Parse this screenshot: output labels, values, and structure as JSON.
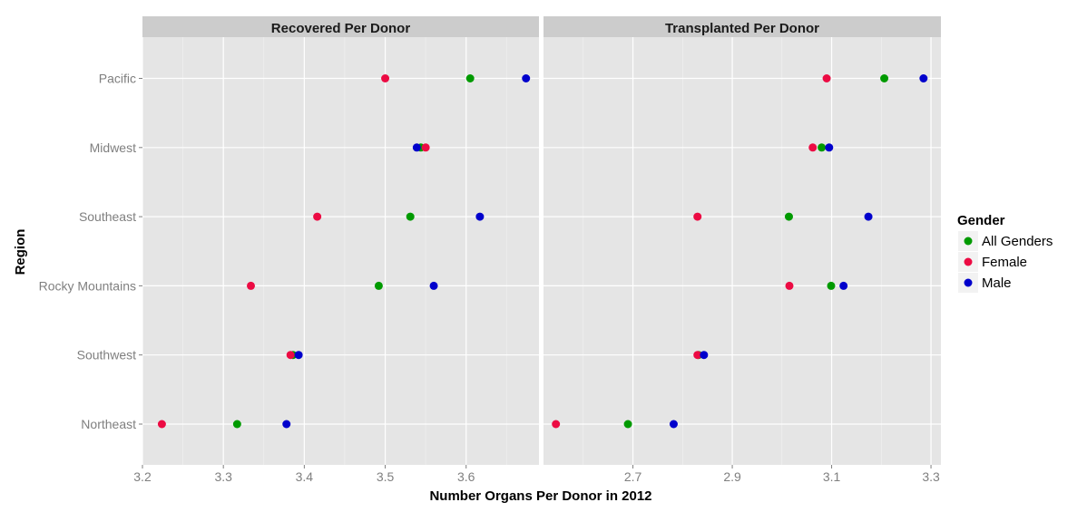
{
  "chart_data": {
    "type": "scatter",
    "categories": [
      "Northeast",
      "Southwest",
      "Rocky Mountains",
      "Southeast",
      "Midwest",
      "Pacific"
    ],
    "xlabel": "Number Organs Per Donor in 2012",
    "ylabel": "Region",
    "legend": {
      "title": "Gender",
      "position": "right",
      "entries": [
        {
          "label": "All Genders",
          "color": "#009a00"
        },
        {
          "label": "Female",
          "color": "#ec0b43"
        },
        {
          "label": "Male",
          "color": "#0000cc"
        }
      ]
    },
    "grid": true,
    "panels": [
      {
        "title": "Recovered Per Donor",
        "xlim": [
          3.2,
          3.69
        ],
        "xticks": [
          "3.2",
          "3.3",
          "3.4",
          "3.5",
          "3.6"
        ],
        "series": [
          {
            "name": "All Genders",
            "values": [
              3.317,
              3.386,
              3.492,
              3.531,
              3.544,
              3.605
            ]
          },
          {
            "name": "Female",
            "values": [
              3.224,
              3.383,
              3.334,
              3.416,
              3.55,
              3.5
            ]
          },
          {
            "name": "Male",
            "values": [
              3.378,
              3.393,
              3.56,
              3.617,
              3.539,
              3.674
            ]
          }
        ]
      },
      {
        "title": "Transplanted Per Donor",
        "xlim": [
          2.52,
          3.32
        ],
        "xticks": [
          "2.7",
          "2.9",
          "3.1",
          "3.3"
        ],
        "series": [
          {
            "name": "All Genders",
            "values": [
              2.69,
              2.832,
              3.099,
              3.014,
              3.08,
              3.206
            ]
          },
          {
            "name": "Female",
            "values": [
              2.545,
              2.83,
              3.015,
              2.83,
              3.062,
              3.09
            ]
          },
          {
            "name": "Male",
            "values": [
              2.782,
              2.843,
              3.124,
              3.174,
              3.095,
              3.285
            ]
          }
        ]
      }
    ]
  }
}
